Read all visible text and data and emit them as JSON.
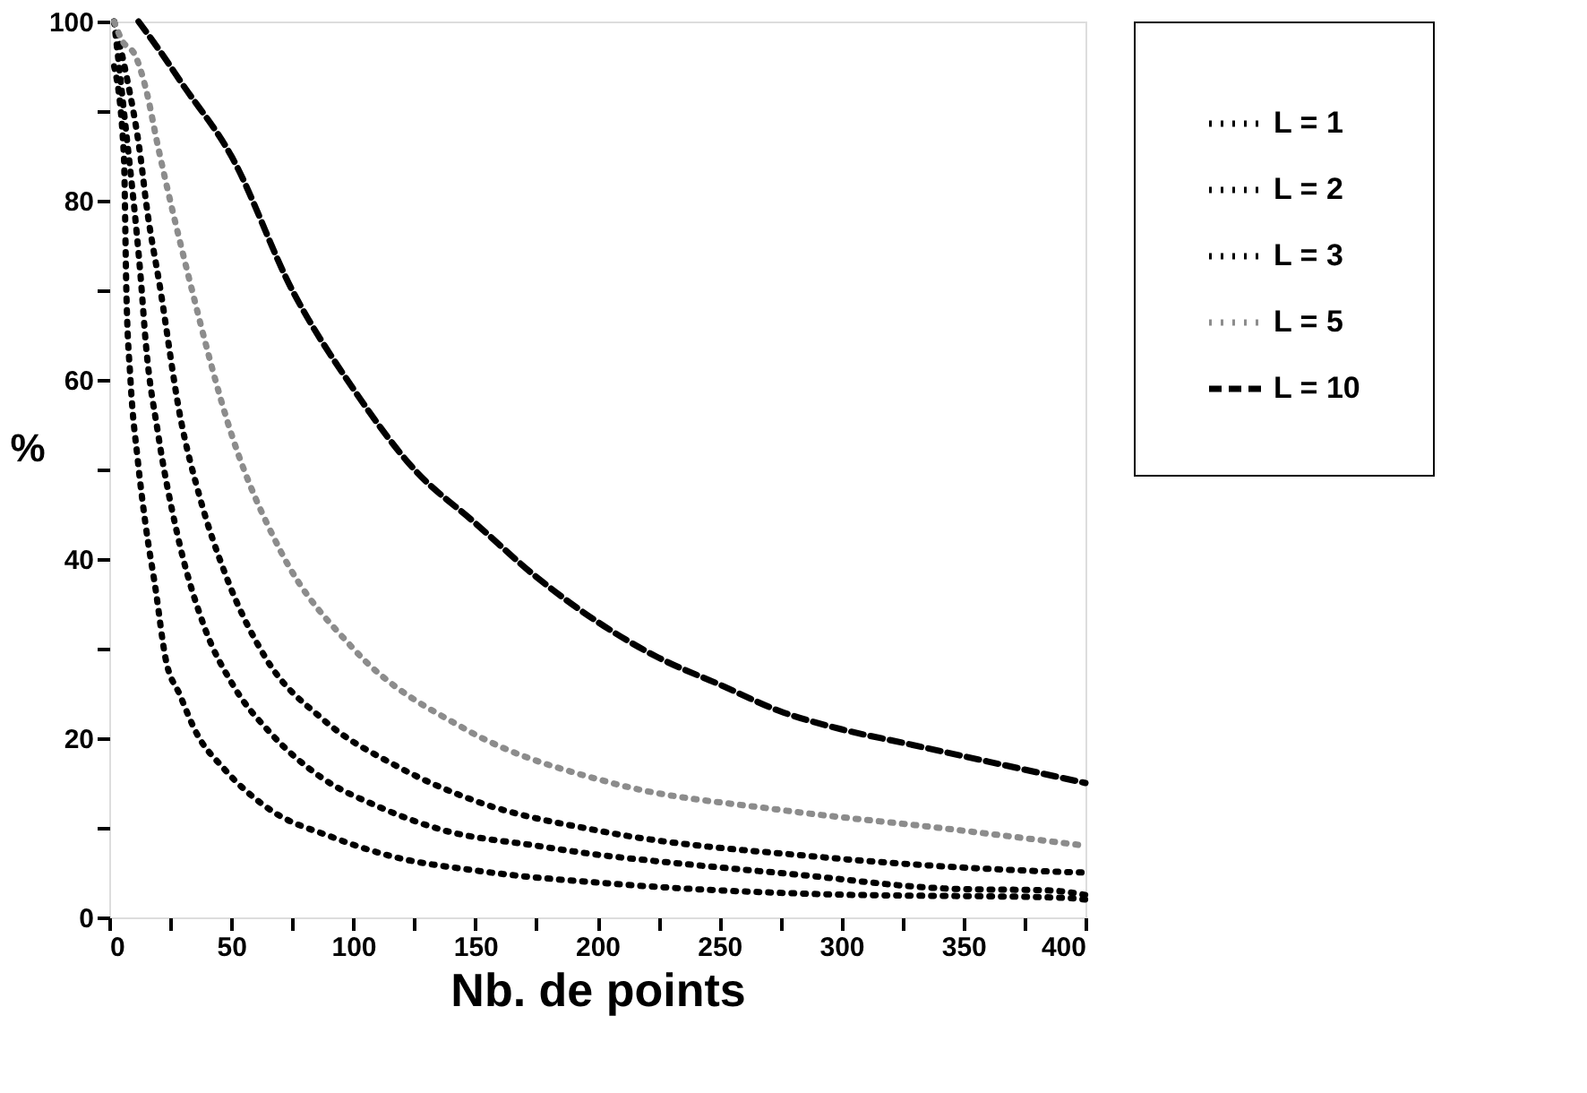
{
  "chart_data": {
    "type": "line",
    "xlabel": "Nb. de points",
    "ylabel": "%",
    "xlim": [
      0,
      400
    ],
    "ylim": [
      0,
      100
    ],
    "xticks": [
      0,
      {
        "value": 25,
        "label": null
      },
      50,
      {
        "value": 75,
        "label": null
      },
      100,
      {
        "value": 125,
        "label": null
      },
      150,
      {
        "value": 175,
        "label": null
      },
      200,
      {
        "value": 225,
        "label": null
      },
      250,
      {
        "value": 275,
        "label": null
      },
      300,
      {
        "value": 325,
        "label": null
      },
      350,
      {
        "value": 375,
        "label": null
      },
      400
    ],
    "yticks": [
      0,
      {
        "value": 10,
        "label": null
      },
      20,
      {
        "value": 30,
        "label": null
      },
      40,
      {
        "value": 50,
        "label": null
      },
      60,
      {
        "value": 70,
        "label": null
      },
      80,
      {
        "value": 90,
        "label": null
      },
      100
    ],
    "grid": false,
    "legend": "right",
    "series": [
      {
        "name": "L = 1",
        "color": "#000000",
        "line_style": "dotted",
        "x": [
          2,
          6,
          7,
          8.7,
          11.7,
          15,
          19,
          23,
          29,
          35.7,
          47,
          66,
          91,
          116,
          151,
          204,
          291,
          390,
          400
        ],
        "values": [
          95,
          85,
          70,
          60,
          51,
          43.6,
          36.6,
          29,
          24.8,
          20.6,
          16.6,
          12,
          9,
          6.8,
          5.2,
          3.8,
          2.6,
          2.2,
          2
        ]
      },
      {
        "name": "L = 2",
        "color": "#000000",
        "line_style": "dotted",
        "x": [
          2,
          6,
          13,
          15,
          20,
          27.7,
          39,
          51,
          66,
          87,
          110,
          136,
          175,
          200,
          227,
          281,
          345,
          386,
          400
        ],
        "values": [
          100,
          90,
          71,
          64,
          54,
          43,
          32.4,
          25.8,
          20.6,
          15.6,
          12.4,
          9.8,
          8,
          7,
          6.2,
          4.8,
          3.2,
          3,
          2.5
        ]
      },
      {
        "name": "L = 3",
        "color": "#000000",
        "line_style": "dotted",
        "x": [
          2,
          7,
          13,
          15,
          21,
          29,
          37,
          48,
          64,
          88,
          117,
          150,
          202,
          289,
          378,
          400
        ],
        "values": [
          100,
          94,
          84.5,
          80,
          70,
          56,
          47,
          38,
          29,
          22,
          17,
          13,
          9.6,
          6.8,
          5.2,
          5
        ]
      },
      {
        "name": "L = 5",
        "color": "#8c8c8c",
        "line_style": "dotted",
        "x": [
          2,
          5,
          11,
          15,
          20,
          33,
          50,
          70,
          100,
          146,
          206,
          275,
          340,
          400
        ],
        "values": [
          100,
          98,
          96,
          92.5,
          86,
          71,
          54,
          41,
          30,
          21,
          15,
          12,
          10,
          8
        ]
      },
      {
        "name": "L = 10",
        "color": "#000000",
        "line_style": "dashed",
        "x": [
          12,
          20,
          30,
          50,
          75,
          100,
          125,
          150,
          175,
          200,
          225,
          250,
          275,
          300,
          325,
          350,
          375,
          400
        ],
        "values": [
          100,
          97,
          93,
          85,
          70,
          59,
          50,
          44,
          38,
          33,
          29,
          26,
          23,
          21,
          19.5,
          18,
          16.5,
          15
        ]
      }
    ]
  }
}
